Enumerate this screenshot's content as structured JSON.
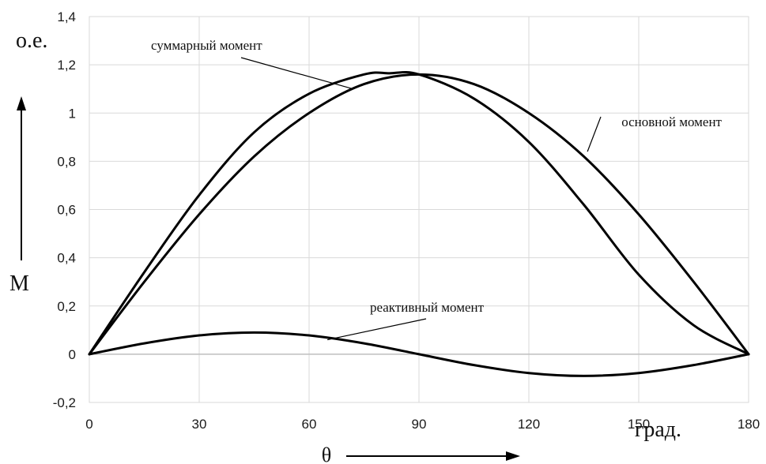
{
  "chart_data": {
    "type": "line",
    "x_unit": "град.",
    "x_symbol": "θ",
    "y_unit": "о.е.",
    "y_symbol": "M",
    "xlim": [
      0,
      180
    ],
    "ylim": [
      -0.2,
      1.4
    ],
    "x_ticks": [
      0,
      30,
      60,
      90,
      120,
      150,
      180
    ],
    "y_ticks": [
      -0.2,
      0,
      0.2,
      0.4,
      0.6,
      0.8,
      1,
      1.2,
      1.4
    ],
    "y_tick_labels": [
      "-0,2",
      "0",
      "0,2",
      "0,4",
      "0,6",
      "0,8",
      "1",
      "1,2",
      "1,4"
    ],
    "x_tick_labels": [
      "0",
      "30",
      "60",
      "90",
      "120",
      "150",
      "180"
    ],
    "grid": "vertical and horizontal",
    "line_color": "#000000",
    "grid_color": "#d9d9d9",
    "series": [
      {
        "name": "суммарный момент",
        "x": [
          0,
          15,
          30,
          45,
          60,
          75,
          82,
          90,
          105,
          120,
          135,
          150,
          165,
          180
        ],
        "y": [
          0,
          0.34,
          0.66,
          0.92,
          1.08,
          1.16,
          1.165,
          1.16,
          1.06,
          0.88,
          0.62,
          0.33,
          0.12,
          0
        ]
      },
      {
        "name": "основной момент",
        "x": [
          0,
          15,
          30,
          45,
          60,
          75,
          90,
          105,
          120,
          135,
          150,
          165,
          180
        ],
        "y": [
          0,
          0.3,
          0.58,
          0.82,
          1.0,
          1.12,
          1.16,
          1.12,
          1.0,
          0.82,
          0.58,
          0.3,
          0
        ]
      },
      {
        "name": "реактивный момент",
        "x": [
          0,
          15,
          30,
          45,
          60,
          75,
          90,
          105,
          120,
          135,
          150,
          165,
          180
        ],
        "y": [
          0,
          0.045,
          0.078,
          0.09,
          0.078,
          0.045,
          0,
          -0.045,
          -0.078,
          -0.09,
          -0.078,
          -0.045,
          0
        ]
      }
    ],
    "annotations": [
      {
        "text": "суммарный момент",
        "series_index": 0
      },
      {
        "text": "основной момент",
        "series_index": 1
      },
      {
        "text": "реактивный момент",
        "series_index": 2
      }
    ]
  }
}
